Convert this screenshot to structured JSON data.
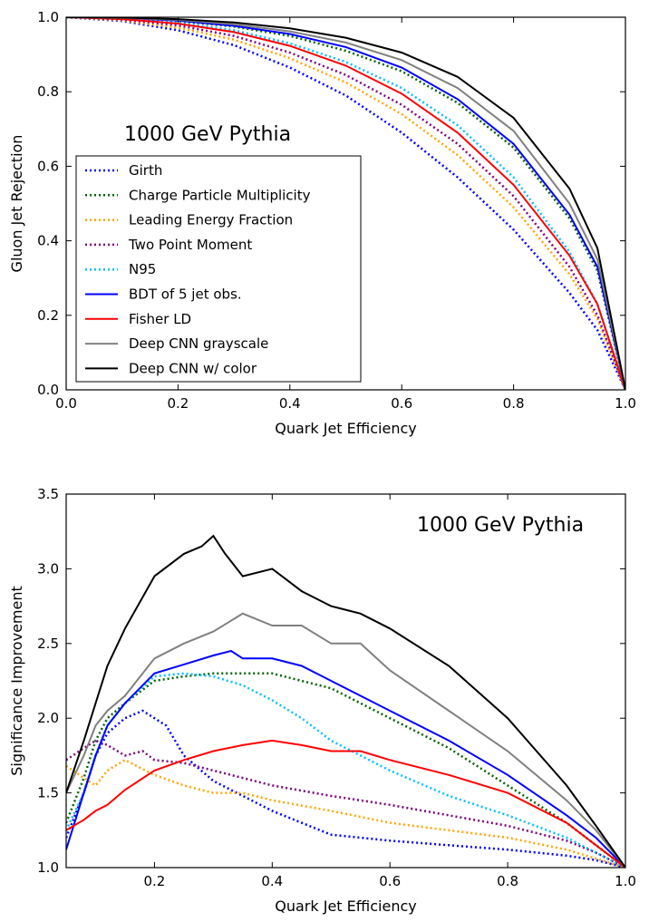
{
  "chart_data": [
    {
      "type": "line",
      "annotation": "1000 GeV Pythia",
      "xlabel": "Quark Jet Efficiency",
      "ylabel": "Gluon Jet Rejection",
      "xlim": [
        0.0,
        1.0
      ],
      "ylim": [
        0.0,
        1.0
      ],
      "xticks": [
        "0.0",
        "0.2",
        "0.4",
        "0.6",
        "0.8",
        "1.0"
      ],
      "yticks": [
        "0.0",
        "0.2",
        "0.4",
        "0.6",
        "0.8",
        "1.0"
      ],
      "legend_position": "lower-left",
      "series": [
        {
          "name": "Girth",
          "color": "#0000ff",
          "style": "dotted",
          "x": [
            0,
            0.1,
            0.2,
            0.3,
            0.4,
            0.5,
            0.6,
            0.7,
            0.8,
            0.9,
            0.95,
            1.0
          ],
          "y": [
            1.0,
            0.99,
            0.965,
            0.925,
            0.865,
            0.79,
            0.69,
            0.57,
            0.43,
            0.26,
            0.16,
            0.0
          ]
        },
        {
          "name": "Charge Particle Multiplicity",
          "color": "#006400",
          "style": "dotted",
          "x": [
            0,
            0.1,
            0.2,
            0.3,
            0.4,
            0.5,
            0.6,
            0.7,
            0.8,
            0.9,
            0.95,
            1.0
          ],
          "y": [
            1.0,
            0.998,
            0.99,
            0.975,
            0.95,
            0.91,
            0.855,
            0.77,
            0.65,
            0.46,
            0.32,
            0.0
          ]
        },
        {
          "name": "Leading Energy Fraction",
          "color": "#ffa500",
          "style": "dotted",
          "x": [
            0,
            0.1,
            0.2,
            0.3,
            0.4,
            0.5,
            0.6,
            0.7,
            0.8,
            0.9,
            0.95,
            1.0
          ],
          "y": [
            1.0,
            0.992,
            0.972,
            0.94,
            0.89,
            0.825,
            0.74,
            0.63,
            0.49,
            0.31,
            0.19,
            0.0
          ]
        },
        {
          "name": "Two Point Moment",
          "color": "#800080",
          "style": "dotted",
          "x": [
            0,
            0.1,
            0.2,
            0.3,
            0.4,
            0.5,
            0.6,
            0.7,
            0.8,
            0.9,
            0.95,
            1.0
          ],
          "y": [
            1.0,
            0.994,
            0.978,
            0.95,
            0.905,
            0.845,
            0.765,
            0.66,
            0.52,
            0.33,
            0.2,
            0.0
          ]
        },
        {
          "name": "N95",
          "color": "#00bfff",
          "style": "dotted",
          "x": [
            0,
            0.1,
            0.2,
            0.3,
            0.4,
            0.5,
            0.6,
            0.7,
            0.8,
            0.9,
            0.95,
            1.0
          ],
          "y": [
            1.0,
            0.996,
            0.985,
            0.965,
            0.93,
            0.88,
            0.81,
            0.71,
            0.57,
            0.37,
            0.23,
            0.0
          ]
        },
        {
          "name": "BDT of 5 jet obs.",
          "color": "#0000ff",
          "style": "solid",
          "x": [
            0,
            0.1,
            0.2,
            0.3,
            0.4,
            0.5,
            0.6,
            0.7,
            0.8,
            0.9,
            0.95,
            1.0
          ],
          "y": [
            1.0,
            0.998,
            0.991,
            0.977,
            0.955,
            0.92,
            0.865,
            0.78,
            0.66,
            0.47,
            0.33,
            0.0
          ]
        },
        {
          "name": "Fisher LD",
          "color": "#ff0000",
          "style": "solid",
          "x": [
            0,
            0.1,
            0.2,
            0.3,
            0.4,
            0.5,
            0.6,
            0.7,
            0.8,
            0.9,
            0.95,
            1.0
          ],
          "y": [
            1.0,
            0.995,
            0.983,
            0.96,
            0.923,
            0.87,
            0.795,
            0.69,
            0.55,
            0.36,
            0.23,
            0.0
          ]
        },
        {
          "name": "Deep CNN grayscale",
          "color": "#808080",
          "style": "solid",
          "x": [
            0,
            0.1,
            0.2,
            0.3,
            0.4,
            0.5,
            0.6,
            0.7,
            0.8,
            0.9,
            0.95,
            1.0
          ],
          "y": [
            1.0,
            0.998,
            0.993,
            0.981,
            0.962,
            0.932,
            0.885,
            0.81,
            0.695,
            0.5,
            0.35,
            0.0
          ]
        },
        {
          "name": "Deep CNN w/ color",
          "color": "#000000",
          "style": "solid",
          "x": [
            0,
            0.1,
            0.2,
            0.3,
            0.4,
            0.5,
            0.6,
            0.7,
            0.8,
            0.9,
            0.95,
            1.0
          ],
          "y": [
            1.0,
            0.999,
            0.995,
            0.986,
            0.97,
            0.945,
            0.905,
            0.84,
            0.73,
            0.54,
            0.38,
            0.0
          ]
        }
      ]
    },
    {
      "type": "line",
      "annotation": "1000 GeV Pythia",
      "xlabel": "Quark Jet Efficiency",
      "ylabel": "Significance Improvement",
      "xlim": [
        0.05,
        1.0
      ],
      "ylim": [
        1.0,
        3.5
      ],
      "xticks": [
        "0.2",
        "0.4",
        "0.6",
        "0.8",
        "1.0"
      ],
      "yticks": [
        "1.0",
        "1.5",
        "2.0",
        "2.5",
        "3.0",
        "3.5"
      ],
      "series": [
        {
          "name": "Girth",
          "color": "#0000ff",
          "style": "dotted",
          "x": [
            0.05,
            0.08,
            0.1,
            0.12,
            0.15,
            0.18,
            0.2,
            0.22,
            0.25,
            0.3,
            0.4,
            0.5,
            0.6,
            0.7,
            0.8,
            0.9,
            0.95,
            1.0
          ],
          "y": [
            1.2,
            1.5,
            1.75,
            1.9,
            2.0,
            2.05,
            2.0,
            1.95,
            1.75,
            1.58,
            1.38,
            1.22,
            1.18,
            1.15,
            1.12,
            1.08,
            1.05,
            1.0
          ]
        },
        {
          "name": "Charge Particle Multiplicity",
          "color": "#006400",
          "style": "dotted",
          "x": [
            0.05,
            0.08,
            0.1,
            0.12,
            0.15,
            0.2,
            0.25,
            0.3,
            0.35,
            0.4,
            0.5,
            0.6,
            0.7,
            0.8,
            0.9,
            0.95,
            1.0
          ],
          "y": [
            1.3,
            1.6,
            1.85,
            2.0,
            2.1,
            2.25,
            2.28,
            2.3,
            2.3,
            2.3,
            2.2,
            2.0,
            1.8,
            1.55,
            1.3,
            1.15,
            1.0
          ]
        },
        {
          "name": "Leading Energy Fraction",
          "color": "#ffa500",
          "style": "dotted",
          "x": [
            0.05,
            0.08,
            0.1,
            0.12,
            0.15,
            0.2,
            0.25,
            0.3,
            0.35,
            0.4,
            0.5,
            0.6,
            0.7,
            0.8,
            0.9,
            0.95,
            1.0
          ],
          "y": [
            1.68,
            1.6,
            1.55,
            1.65,
            1.72,
            1.62,
            1.55,
            1.5,
            1.5,
            1.45,
            1.38,
            1.3,
            1.25,
            1.2,
            1.12,
            1.06,
            1.0
          ]
        },
        {
          "name": "Two Point Moment",
          "color": "#800080",
          "style": "dotted",
          "x": [
            0.05,
            0.08,
            0.1,
            0.12,
            0.15,
            0.18,
            0.2,
            0.25,
            0.3,
            0.35,
            0.4,
            0.5,
            0.6,
            0.7,
            0.8,
            0.9,
            0.95,
            1.0
          ],
          "y": [
            1.72,
            1.8,
            1.85,
            1.82,
            1.75,
            1.78,
            1.72,
            1.7,
            1.65,
            1.6,
            1.55,
            1.48,
            1.42,
            1.35,
            1.28,
            1.18,
            1.1,
            1.0
          ]
        },
        {
          "name": "N95",
          "color": "#00bfff",
          "style": "dotted",
          "x": [
            0.05,
            0.08,
            0.1,
            0.12,
            0.15,
            0.2,
            0.25,
            0.3,
            0.35,
            0.4,
            0.45,
            0.5,
            0.6,
            0.7,
            0.8,
            0.9,
            0.95,
            1.0
          ],
          "y": [
            1.25,
            1.5,
            1.75,
            1.95,
            2.1,
            2.28,
            2.3,
            2.28,
            2.22,
            2.12,
            2.0,
            1.85,
            1.65,
            1.48,
            1.35,
            1.2,
            1.1,
            1.0
          ]
        },
        {
          "name": "BDT of 5 jet obs.",
          "color": "#0000ff",
          "style": "solid",
          "x": [
            0.05,
            0.08,
            0.1,
            0.12,
            0.15,
            0.2,
            0.25,
            0.3,
            0.33,
            0.35,
            0.4,
            0.45,
            0.5,
            0.6,
            0.7,
            0.8,
            0.9,
            0.95,
            1.0
          ],
          "y": [
            1.12,
            1.5,
            1.75,
            1.95,
            2.1,
            2.3,
            2.36,
            2.42,
            2.45,
            2.4,
            2.4,
            2.35,
            2.25,
            2.05,
            1.85,
            1.62,
            1.35,
            1.2,
            1.0
          ]
        },
        {
          "name": "Fisher LD",
          "color": "#ff0000",
          "style": "solid",
          "x": [
            0.05,
            0.08,
            0.1,
            0.12,
            0.15,
            0.2,
            0.25,
            0.3,
            0.35,
            0.4,
            0.45,
            0.5,
            0.55,
            0.6,
            0.7,
            0.8,
            0.9,
            0.95,
            1.0
          ],
          "y": [
            1.25,
            1.32,
            1.38,
            1.42,
            1.52,
            1.65,
            1.72,
            1.78,
            1.82,
            1.85,
            1.82,
            1.78,
            1.78,
            1.72,
            1.62,
            1.5,
            1.3,
            1.15,
            1.0
          ]
        },
        {
          "name": "Deep CNN grayscale",
          "color": "#808080",
          "style": "solid",
          "x": [
            0.05,
            0.08,
            0.1,
            0.12,
            0.15,
            0.2,
            0.25,
            0.3,
            0.35,
            0.4,
            0.45,
            0.5,
            0.55,
            0.6,
            0.7,
            0.8,
            0.9,
            0.95,
            1.0
          ],
          "y": [
            1.5,
            1.75,
            1.95,
            2.05,
            2.15,
            2.4,
            2.5,
            2.58,
            2.7,
            2.62,
            2.62,
            2.5,
            2.5,
            2.32,
            2.05,
            1.78,
            1.45,
            1.25,
            1.0
          ]
        },
        {
          "name": "Deep CNN w/ color",
          "color": "#000000",
          "style": "solid",
          "x": [
            0.05,
            0.08,
            0.1,
            0.12,
            0.15,
            0.2,
            0.25,
            0.28,
            0.3,
            0.32,
            0.35,
            0.4,
            0.45,
            0.5,
            0.55,
            0.6,
            0.7,
            0.8,
            0.9,
            0.95,
            1.0
          ],
          "y": [
            1.5,
            1.85,
            2.1,
            2.35,
            2.6,
            2.95,
            3.1,
            3.15,
            3.22,
            3.1,
            2.95,
            3.0,
            2.85,
            2.75,
            2.7,
            2.6,
            2.35,
            2.0,
            1.55,
            1.28,
            1.0
          ]
        }
      ]
    }
  ]
}
